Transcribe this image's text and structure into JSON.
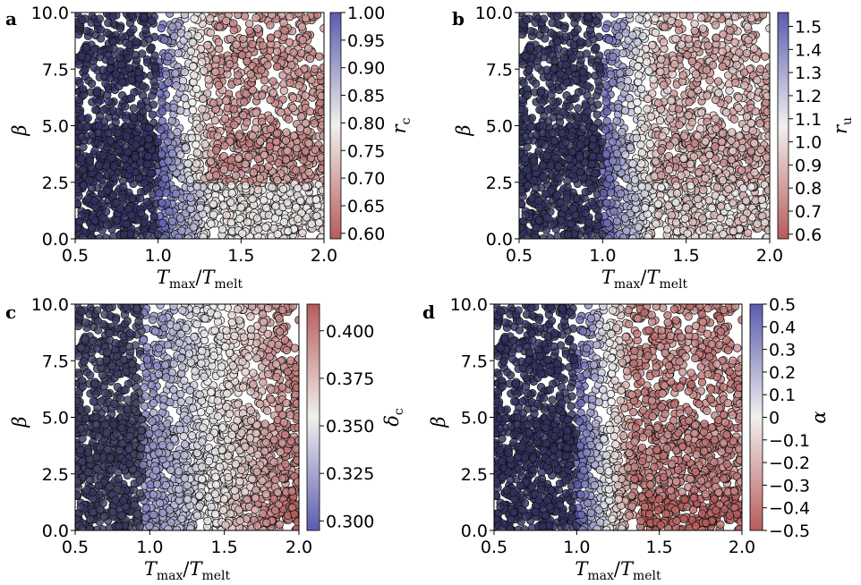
{
  "chart_data": [
    {
      "type": "scatter",
      "panel_label": "a",
      "xlabel": "T_max/T_melt",
      "ylabel": "β",
      "xlim": [
        0.5,
        2.0
      ],
      "ylim": [
        0.0,
        10.0
      ],
      "xticks": [
        "0.5",
        "1.0",
        "1.5",
        "2.0"
      ],
      "yticks": [
        "0.0",
        "2.5",
        "5.0",
        "7.5",
        "10.0"
      ],
      "colorbar": {
        "label": "r_c",
        "min": 0.59,
        "max": 1.0,
        "ticks": [
          "0.60",
          "0.65",
          "0.70",
          "0.75",
          "0.80",
          "0.85",
          "0.90",
          "0.95",
          "1.00"
        ],
        "tick_values": [
          0.6,
          0.65,
          0.7,
          0.75,
          0.8,
          0.85,
          0.9,
          0.95,
          1.0
        ]
      },
      "colormap": [
        "#b75b5b",
        "#f0f0ee",
        "#5b5bb0"
      ],
      "points": "sampled over x in [0.5,2.0], y in [0,10]; dense band y 0–5; colour ≈1.0 for x<1.0, ≈0.60–0.70 at high x & high y, ≈0.80 at high x & low y"
    },
    {
      "type": "scatter",
      "panel_label": "b",
      "xlabel": "T_max/T_melt",
      "ylabel": "β",
      "xlim": [
        0.5,
        2.0
      ],
      "ylim": [
        0.0,
        10.0
      ],
      "xticks": [
        "0.5",
        "1.0",
        "1.5",
        "2.0"
      ],
      "yticks": [
        "0.0",
        "2.5",
        "5.0",
        "7.5",
        "10.0"
      ],
      "colorbar": {
        "label": "r_u",
        "min": 0.58,
        "max": 1.56,
        "ticks": [
          "0.6",
          "0.7",
          "0.8",
          "0.9",
          "1.0",
          "1.1",
          "1.2",
          "1.3",
          "1.4",
          "1.5"
        ],
        "tick_values": [
          0.6,
          0.7,
          0.8,
          0.9,
          1.0,
          1.1,
          1.2,
          1.3,
          1.4,
          1.5
        ]
      },
      "colormap": [
        "#b75b5b",
        "#f0f0ee",
        "#5b5bb0"
      ]
    },
    {
      "type": "scatter",
      "panel_label": "c",
      "xlabel": "T_max/T_melt",
      "ylabel": "β",
      "xlim": [
        0.5,
        2.0
      ],
      "ylim": [
        0.0,
        10.0
      ],
      "xticks": [
        "0.5",
        "1.0",
        "1.5",
        "2.0"
      ],
      "yticks": [
        "0.0",
        "2.5",
        "5.0",
        "7.5",
        "10.0"
      ],
      "colorbar": {
        "label": "δ_c",
        "min": 0.295,
        "max": 0.414,
        "ticks": [
          "0.300",
          "0.325",
          "0.350",
          "0.375",
          "0.400"
        ],
        "tick_values": [
          0.3,
          0.325,
          0.35,
          0.375,
          0.4
        ]
      },
      "colormap": [
        "#5b5bb0",
        "#f0f0ee",
        "#b75b5b"
      ]
    },
    {
      "type": "scatter",
      "panel_label": "d",
      "xlabel": "T_max/T_melt",
      "ylabel": "β",
      "xlim": [
        0.5,
        2.0
      ],
      "ylim": [
        0.0,
        10.0
      ],
      "xticks": [
        "0.5",
        "1.0",
        "1.5",
        "2.0"
      ],
      "yticks": [
        "0.0",
        "2.5",
        "5.0",
        "7.5",
        "10.0"
      ],
      "colorbar": {
        "label": "α",
        "min": -0.5,
        "max": 0.5,
        "ticks": [
          "−0.5",
          "−0.4",
          "−0.3",
          "−0.2",
          "−0.1",
          "0",
          "0.1",
          "0.2",
          "0.3",
          "0.4",
          "0.5"
        ],
        "tick_values": [
          -0.5,
          -0.4,
          -0.3,
          -0.2,
          -0.1,
          0.0,
          0.1,
          0.2,
          0.3,
          0.4,
          0.5
        ]
      },
      "colormap": [
        "#b75b5b",
        "#f0f0ee",
        "#5b5bb0"
      ]
    }
  ]
}
